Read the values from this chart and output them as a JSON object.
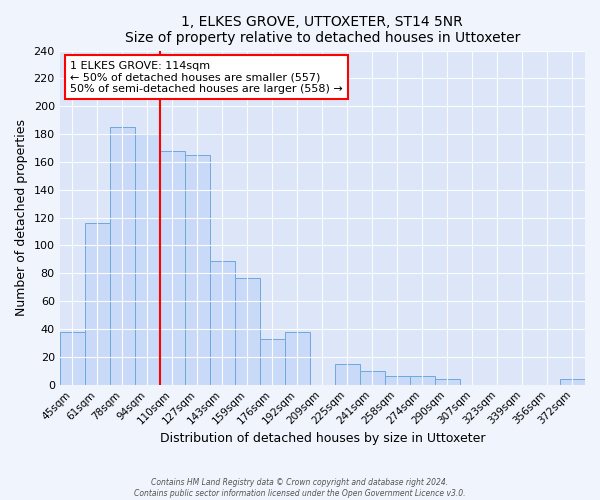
{
  "title": "1, ELKES GROVE, UTTOXETER, ST14 5NR",
  "subtitle": "Size of property relative to detached houses in Uttoxeter",
  "xlabel": "Distribution of detached houses by size in Uttoxeter",
  "ylabel": "Number of detached properties",
  "bar_labels": [
    "45sqm",
    "61sqm",
    "78sqm",
    "94sqm",
    "110sqm",
    "127sqm",
    "143sqm",
    "159sqm",
    "176sqm",
    "192sqm",
    "209sqm",
    "225sqm",
    "241sqm",
    "258sqm",
    "274sqm",
    "290sqm",
    "307sqm",
    "323sqm",
    "339sqm",
    "356sqm",
    "372sqm"
  ],
  "bar_values": [
    38,
    116,
    185,
    180,
    168,
    165,
    89,
    77,
    33,
    38,
    0,
    15,
    10,
    6,
    6,
    4,
    0,
    0,
    0,
    0,
    4
  ],
  "bar_color": "#c9daf8",
  "bar_edge_color": "#6fa8dc",
  "ylim": [
    0,
    240
  ],
  "yticks": [
    0,
    20,
    40,
    60,
    80,
    100,
    120,
    140,
    160,
    180,
    200,
    220,
    240
  ],
  "redline_index": 4,
  "annotation_title": "1 ELKES GROVE: 114sqm",
  "annotation_line1": "← 50% of detached houses are smaller (557)",
  "annotation_line2": "50% of semi-detached houses are larger (558) →",
  "footer1": "Contains HM Land Registry data © Crown copyright and database right 2024.",
  "footer2": "Contains public sector information licensed under the Open Government Licence v3.0.",
  "background_color": "#f0f4fc",
  "plot_bg_color": "#dce6f8"
}
